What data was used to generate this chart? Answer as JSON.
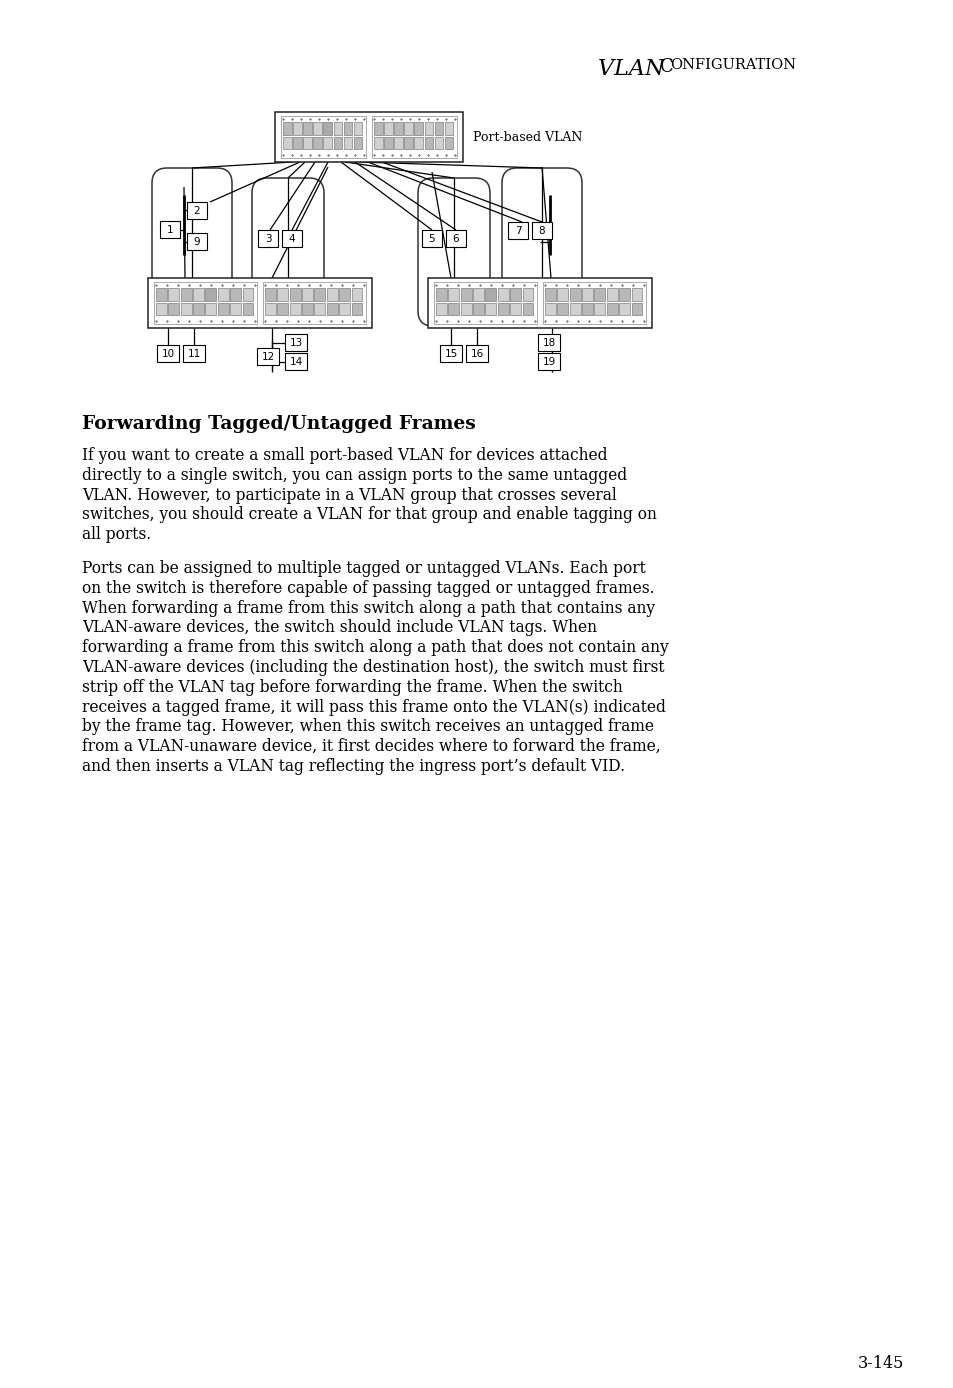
{
  "title_italic": "VLAN ",
  "title_smallcaps_big": "C",
  "title_smallcaps_small": "ONFIGURATION",
  "heading": "Forwarding Tagged/Untagged Frames",
  "paragraph1_lines": [
    "If you want to create a small port-based VLAN for devices attached",
    "directly to a single switch, you can assign ports to the same untagged",
    "VLAN. However, to participate in a VLAN group that crosses several",
    "switches, you should create a VLAN for that group and enable tagging on",
    "all ports."
  ],
  "paragraph2_lines": [
    "Ports can be assigned to multiple tagged or untagged VLANs. Each port",
    "on the switch is therefore capable of passing tagged or untagged frames.",
    "When forwarding a frame from this switch along a path that contains any",
    "VLAN-aware devices, the switch should include VLAN tags. When",
    "forwarding a frame from this switch along a path that does not contain any",
    "VLAN-aware devices (including the destination host), the switch must first",
    "strip off the VLAN tag before forwarding the frame. When the switch",
    "receives a tagged frame, it will pass this frame onto the VLAN(s) indicated",
    "by the frame tag. However, when this switch receives an untagged frame",
    "from a VLAN-unaware device, it first decides where to forward the frame,",
    "and then inserts a VLAN tag reflecting the ingress port’s default VID."
  ],
  "page_number": "3-145",
  "port_based_vlan_label": "Port-based VLAN",
  "bg_color": "#ffffff",
  "text_color": "#000000"
}
